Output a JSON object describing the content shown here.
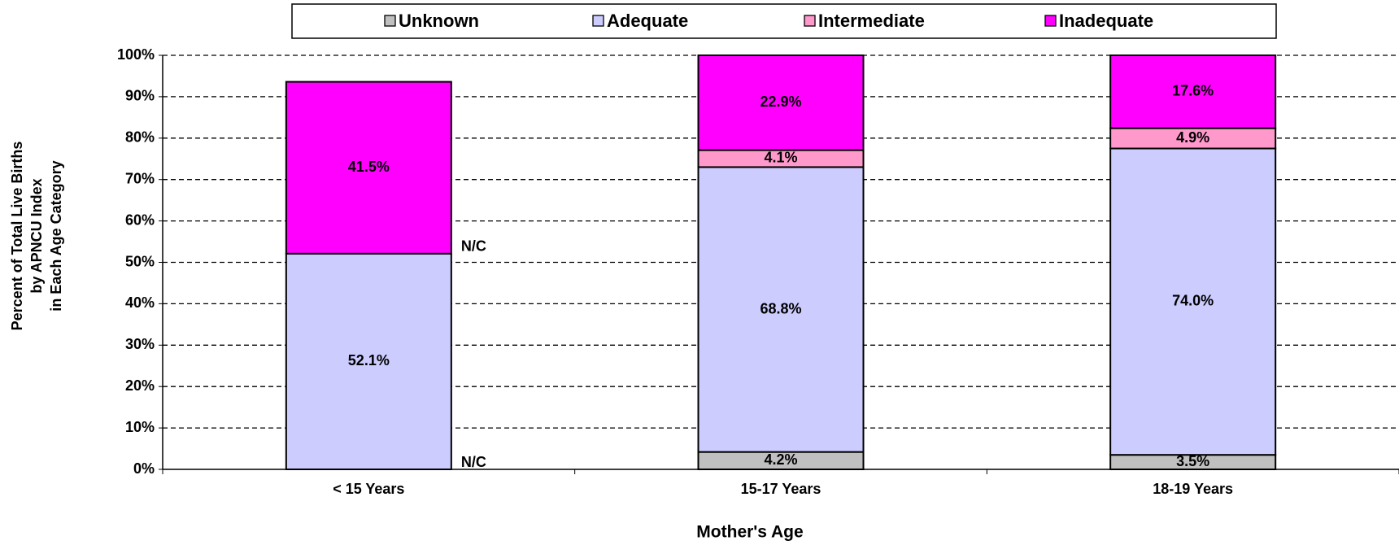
{
  "chart_data": {
    "type": "stacked_bar",
    "xlabel": "Mother's Age",
    "ylabel": [
      "Percent of Total Live Births",
      "by APNCU Index",
      "in Each Age Category"
    ],
    "categories": [
      "< 15 Years",
      "15-17 Years",
      "18-19 Years"
    ],
    "series": [
      {
        "name": "Unknown",
        "color": "#c0c0c0",
        "values": [
          null,
          4.2,
          3.5
        ],
        "value_labels": [
          "N/C",
          "4.2%",
          "3.5%"
        ]
      },
      {
        "name": "Adequate",
        "color": "#ccccff",
        "values": [
          52.1,
          68.8,
          74.0
        ],
        "value_labels": [
          "52.1%",
          "68.8%",
          "74.0%"
        ]
      },
      {
        "name": "Intermediate",
        "color": "#ff99cc",
        "values": [
          null,
          4.1,
          4.9
        ],
        "value_labels": [
          "N/C",
          "4.1%",
          "4.9%"
        ]
      },
      {
        "name": "Inadequate",
        "color": "#ff00ff",
        "values": [
          41.5,
          22.9,
          17.6
        ],
        "value_labels": [
          "41.5%",
          "22.9%",
          "17.6%"
        ]
      }
    ],
    "ylim": [
      0,
      100
    ],
    "yticks": [
      {
        "value": 0,
        "label": "0%"
      },
      {
        "value": 10,
        "label": "10%"
      },
      {
        "value": 20,
        "label": "20%"
      },
      {
        "value": 30,
        "label": "30%"
      },
      {
        "value": 40,
        "label": "40%"
      },
      {
        "value": 50,
        "label": "50%"
      },
      {
        "value": 60,
        "label": "60%"
      },
      {
        "value": 70,
        "label": "70%"
      },
      {
        "value": 80,
        "label": "80%"
      },
      {
        "value": 90,
        "label": "90%"
      },
      {
        "value": 100,
        "label": "100%"
      }
    ],
    "grid": true,
    "legend": "top"
  }
}
